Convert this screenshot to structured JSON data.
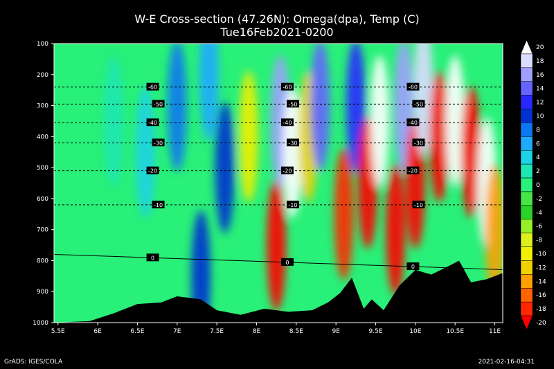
{
  "chart_data": {
    "type": "heatmap",
    "title": "W-E Cross-section (47.26N): Omega(dpa), Temp (C)",
    "subtitle": "Tue16Feb2021-0200",
    "xlabel": "",
    "ylabel": "",
    "xlim": [
      5.45,
      11.1
    ],
    "ylim": [
      1000,
      100
    ],
    "x_ticks": [
      "5.5E",
      "6E",
      "6.5E",
      "7E",
      "7.5E",
      "8E",
      "8.5E",
      "9E",
      "9.5E",
      "10E",
      "10.5E",
      "11E"
    ],
    "y_ticks": [
      "100",
      "200",
      "300",
      "400",
      "500",
      "600",
      "700",
      "800",
      "900",
      "1000"
    ],
    "colorbar": {
      "labels": [
        "20",
        "18",
        "16",
        "14",
        "12",
        "10",
        "8",
        "6",
        "4",
        "2",
        "0",
        "-2",
        "-4",
        "-6",
        "-8",
        "-10",
        "-12",
        "-14",
        "-16",
        "-18",
        "-20"
      ],
      "colors": [
        "#ffffff",
        "#dcdcff",
        "#a0a0ff",
        "#6464ff",
        "#2828ff",
        "#0032d0",
        "#0a78f0",
        "#1eaaff",
        "#1ed2e6",
        "#1ee6b4",
        "#28f078",
        "#46e646",
        "#28d228",
        "#96f028",
        "#dcf01e",
        "#f0f000",
        "#f0d200",
        "#ffa000",
        "#ff6400",
        "#ff2800",
        "#ff0000"
      ]
    },
    "temperature_contours": [
      {
        "label": "-60",
        "pressure": 240
      },
      {
        "label": "-50",
        "pressure": 295
      },
      {
        "label": "-40",
        "pressure": 355
      },
      {
        "label": "-30",
        "pressure": 420
      },
      {
        "label": "-20",
        "pressure": 510
      },
      {
        "label": "-10",
        "pressure": 620
      },
      {
        "label": "0",
        "pressure": 780
      }
    ],
    "omega_cells": [
      {
        "x": 6.2,
        "p": 350,
        "v": 2
      },
      {
        "x": 6.6,
        "p": 450,
        "v": 4
      },
      {
        "x": 7.0,
        "p": 300,
        "v": 8
      },
      {
        "x": 7.3,
        "p": 850,
        "v": 10
      },
      {
        "x": 7.4,
        "p": 200,
        "v": 6
      },
      {
        "x": 7.6,
        "p": 500,
        "v": 10
      },
      {
        "x": 7.9,
        "p": 400,
        "v": -10
      },
      {
        "x": 8.25,
        "p": 750,
        "v": -20
      },
      {
        "x": 8.3,
        "p": 350,
        "v": 16
      },
      {
        "x": 8.45,
        "p": 450,
        "v": 20
      },
      {
        "x": 8.65,
        "p": 400,
        "v": -12
      },
      {
        "x": 8.8,
        "p": 300,
        "v": 14
      },
      {
        "x": 9.1,
        "p": 650,
        "v": -18
      },
      {
        "x": 9.25,
        "p": 300,
        "v": 12
      },
      {
        "x": 9.4,
        "p": 550,
        "v": -20
      },
      {
        "x": 9.55,
        "p": 350,
        "v": 20
      },
      {
        "x": 9.75,
        "p": 700,
        "v": -20
      },
      {
        "x": 9.85,
        "p": 300,
        "v": 16
      },
      {
        "x": 10.0,
        "p": 550,
        "v": -20
      },
      {
        "x": 10.1,
        "p": 250,
        "v": 18
      },
      {
        "x": 10.3,
        "p": 400,
        "v": -20
      },
      {
        "x": 10.5,
        "p": 350,
        "v": 20
      },
      {
        "x": 10.7,
        "p": 450,
        "v": -20
      },
      {
        "x": 10.9,
        "p": 550,
        "v": 20
      },
      {
        "x": 11.0,
        "p": 700,
        "v": -14
      }
    ],
    "terrain": [
      {
        "x": 5.45,
        "p": 1000
      },
      {
        "x": 5.9,
        "p": 995
      },
      {
        "x": 6.2,
        "p": 970
      },
      {
        "x": 6.5,
        "p": 940
      },
      {
        "x": 6.8,
        "p": 935
      },
      {
        "x": 7.0,
        "p": 915
      },
      {
        "x": 7.3,
        "p": 925
      },
      {
        "x": 7.5,
        "p": 960
      },
      {
        "x": 7.8,
        "p": 975
      },
      {
        "x": 8.1,
        "p": 955
      },
      {
        "x": 8.4,
        "p": 965
      },
      {
        "x": 8.7,
        "p": 960
      },
      {
        "x": 8.9,
        "p": 935
      },
      {
        "x": 9.05,
        "p": 905
      },
      {
        "x": 9.2,
        "p": 855
      },
      {
        "x": 9.35,
        "p": 955
      },
      {
        "x": 9.45,
        "p": 925
      },
      {
        "x": 9.6,
        "p": 960
      },
      {
        "x": 9.8,
        "p": 880
      },
      {
        "x": 10.0,
        "p": 830
      },
      {
        "x": 10.2,
        "p": 845
      },
      {
        "x": 10.4,
        "p": 820
      },
      {
        "x": 10.55,
        "p": 800
      },
      {
        "x": 10.7,
        "p": 870
      },
      {
        "x": 10.9,
        "p": 860
      },
      {
        "x": 11.1,
        "p": 840
      }
    ]
  },
  "footer": {
    "left": "GrADS: IGES/COLA",
    "right": "2021-02-16-04:31"
  }
}
